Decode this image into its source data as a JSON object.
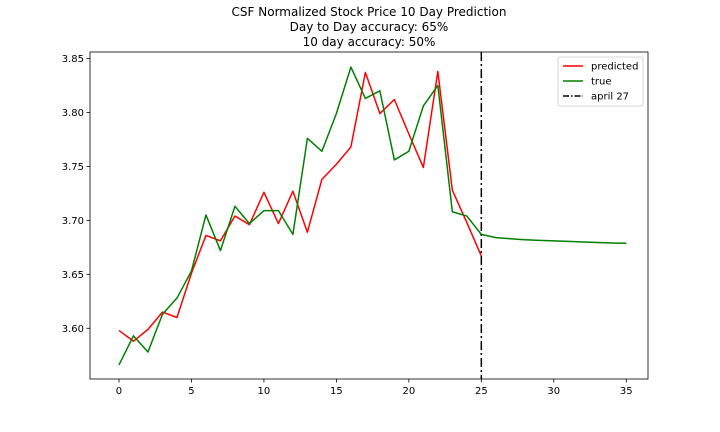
{
  "chart_data": {
    "type": "line",
    "title_lines": [
      "CSF Normalized Stock Price 10 Day Prediction",
      "Day to Day accuracy: 65%",
      "10 day accuracy: 50%"
    ],
    "xlabel": "",
    "ylabel": "",
    "xlim": [
      -2,
      36.5
    ],
    "ylim": [
      3.553,
      3.856
    ],
    "x_ticks": [
      0,
      5,
      10,
      15,
      20,
      25,
      30,
      35
    ],
    "y_ticks": [
      3.6,
      3.65,
      3.7,
      3.75,
      3.8,
      3.85
    ],
    "y_tick_labels": [
      "3.60",
      "3.65",
      "3.70",
      "3.75",
      "3.80",
      "3.85"
    ],
    "grid": false,
    "legend_position": "top-right",
    "series": [
      {
        "name": "predicted",
        "color": "#ff0000",
        "x": [
          0,
          1,
          2,
          3,
          4,
          5,
          6,
          7,
          8,
          9,
          10,
          11,
          12,
          13,
          14,
          15,
          16,
          17,
          18,
          19,
          20,
          21,
          22,
          23,
          24,
          25
        ],
        "y": [
          3.598,
          3.588,
          3.599,
          3.615,
          3.61,
          3.651,
          3.686,
          3.681,
          3.704,
          3.696,
          3.726,
          3.697,
          3.727,
          3.689,
          3.738,
          3.752,
          3.768,
          3.837,
          3.799,
          3.812,
          3.78,
          3.749,
          3.838,
          3.728,
          3.698,
          3.667
        ]
      },
      {
        "name": "true",
        "color": "#008000",
        "x": [
          0,
          1,
          2,
          3,
          4,
          5,
          6,
          7,
          8,
          9,
          10,
          11,
          12,
          13,
          14,
          15,
          16,
          17,
          18,
          19,
          20,
          21,
          22,
          23,
          24,
          25,
          26,
          27,
          28,
          29,
          30,
          31,
          32,
          33,
          34,
          35
        ],
        "y": [
          3.566,
          3.593,
          3.578,
          3.613,
          3.628,
          3.653,
          3.705,
          3.672,
          3.713,
          3.697,
          3.709,
          3.709,
          3.687,
          3.776,
          3.764,
          3.799,
          3.842,
          3.813,
          3.82,
          3.756,
          3.764,
          3.806,
          3.825,
          3.708,
          3.704,
          3.687,
          3.684,
          3.683,
          3.682,
          3.6815,
          3.681,
          3.6805,
          3.68,
          3.6795,
          3.679,
          3.6788
        ]
      }
    ],
    "vline": {
      "name": "april 27",
      "x": 25,
      "color": "#000000",
      "style": "dash-dot"
    }
  }
}
